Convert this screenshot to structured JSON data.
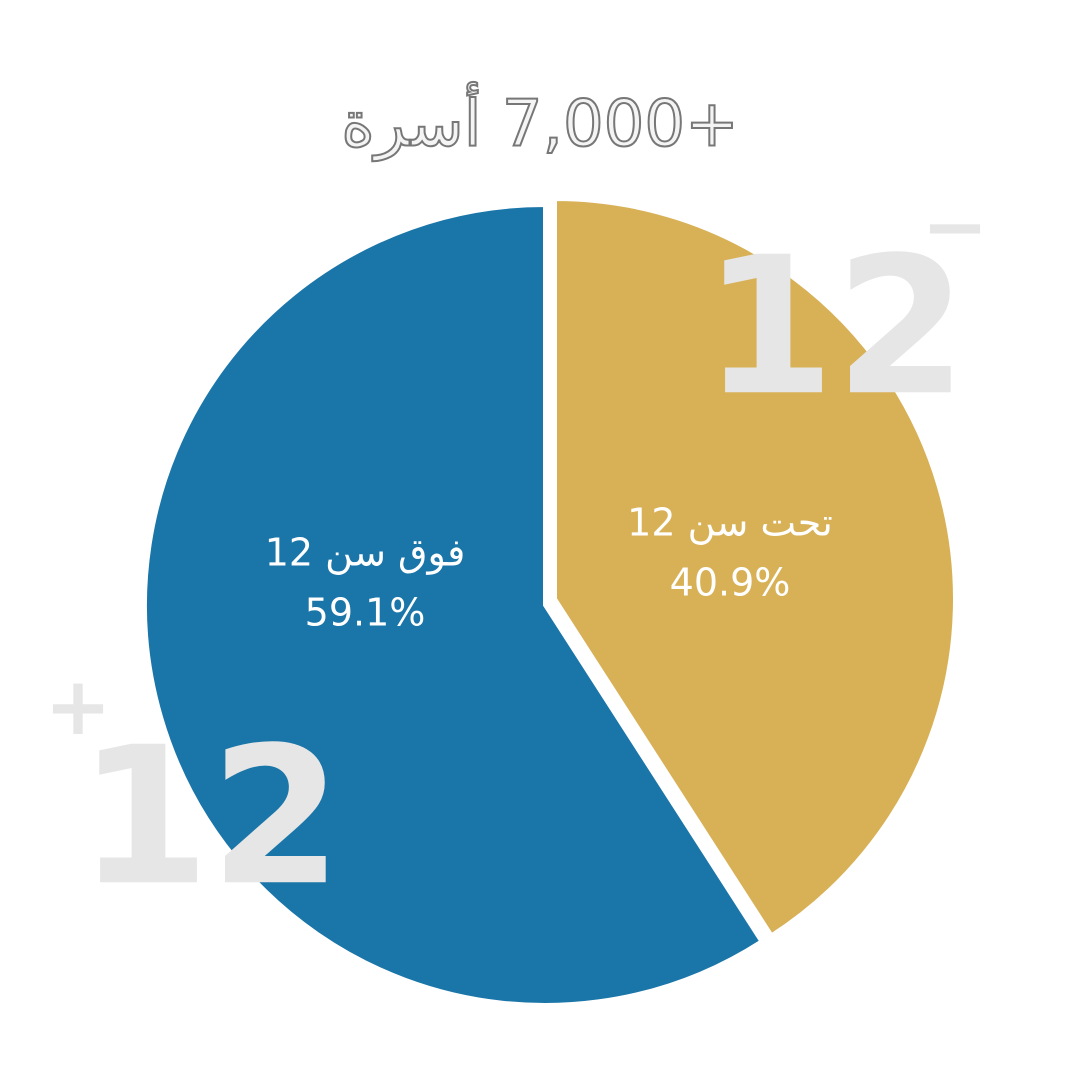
{
  "chart_data": {
    "type": "pie",
    "title": "+7,000 أسرة",
    "categories": [
      "تحت سن 12",
      "فوق سن 12"
    ],
    "values": [
      40.9,
      59.1
    ],
    "value_labels": [
      "40.9%",
      "59.1%"
    ],
    "colors": [
      "#d8b157",
      "#1a75a8"
    ],
    "annotations": [
      {
        "number": "12",
        "sign": "−"
      },
      {
        "number": "12",
        "sign": "+"
      }
    ]
  }
}
